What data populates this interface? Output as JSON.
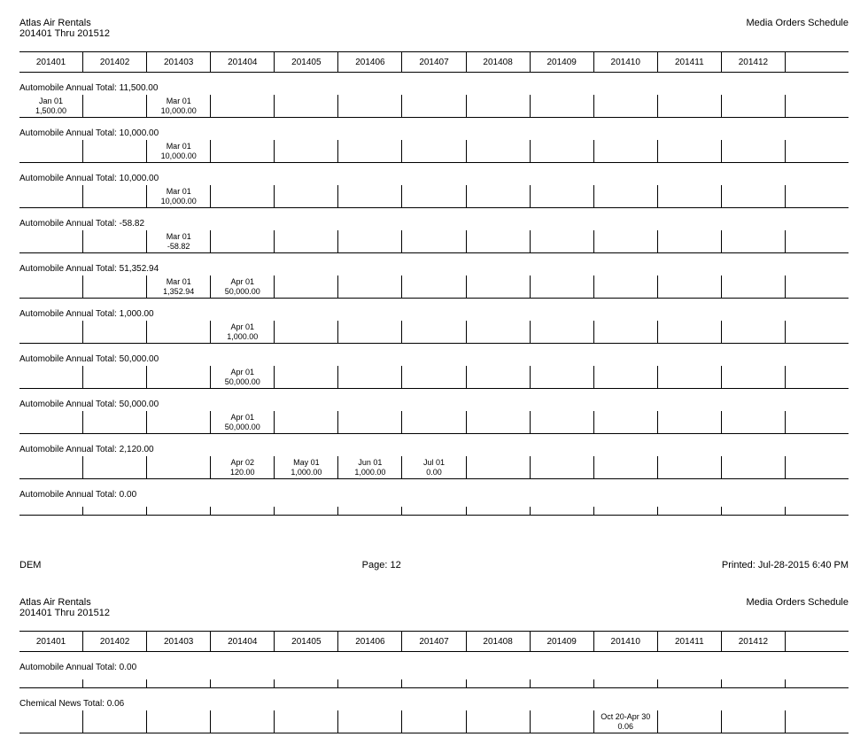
{
  "columns": 13,
  "periods": [
    "201401",
    "201402",
    "201403",
    "201404",
    "201405",
    "201406",
    "201407",
    "201408",
    "201409",
    "201410",
    "201411",
    "201412",
    ""
  ],
  "pages": [
    {
      "company": "Atlas Air Rentals",
      "dateRange": "201401 Thru 201512",
      "docTitle": "Media Orders Schedule",
      "sections": [
        {
          "title": "Automobile Annual   Total: 11,500.00",
          "entries": [
            {
              "col": 0,
              "date": "Jan 01",
              "value": "1,500.00"
            },
            {
              "col": 2,
              "date": "Mar 01",
              "value": "10,000.00"
            }
          ]
        },
        {
          "title": "Automobile Annual   Total: 10,000.00",
          "entries": [
            {
              "col": 2,
              "date": "Mar 01",
              "value": "10,000.00"
            }
          ]
        },
        {
          "title": "Automobile Annual   Total: 10,000.00",
          "entries": [
            {
              "col": 2,
              "date": "Mar 01",
              "value": "10,000.00"
            }
          ]
        },
        {
          "title": "Automobile Annual   Total: -58.82",
          "entries": [
            {
              "col": 2,
              "date": "Mar 01",
              "value": "-58.82"
            }
          ]
        },
        {
          "title": "Automobile Annual   Total: 51,352.94",
          "entries": [
            {
              "col": 2,
              "date": "Mar 01",
              "value": "1,352.94"
            },
            {
              "col": 3,
              "date": "Apr 01",
              "value": "50,000.00"
            }
          ]
        },
        {
          "title": "Automobile Annual   Total: 1,000.00",
          "entries": [
            {
              "col": 3,
              "date": "Apr 01",
              "value": "1,000.00"
            }
          ]
        },
        {
          "title": "Automobile Annual   Total: 50,000.00",
          "entries": [
            {
              "col": 3,
              "date": "Apr 01",
              "value": "50,000.00"
            }
          ]
        },
        {
          "title": "Automobile Annual   Total: 50,000.00",
          "entries": [
            {
              "col": 3,
              "date": "Apr 01",
              "value": "50,000.00"
            }
          ]
        },
        {
          "title": "Automobile Annual   Total: 2,120.00",
          "entries": [
            {
              "col": 3,
              "date": "Apr 02",
              "value": "120.00"
            },
            {
              "col": 4,
              "date": "May 01",
              "value": "1,000.00"
            },
            {
              "col": 5,
              "date": "Jun 01",
              "value": "1,000.00"
            },
            {
              "col": 6,
              "date": "Jul 01",
              "value": "0.00"
            }
          ]
        },
        {
          "title": "Automobile Annual   Total: 0.00",
          "entries": []
        }
      ],
      "footer": {
        "left": "DEM",
        "center": "Page: 12",
        "right": "Printed: Jul-28-2015 6:40 PM"
      }
    },
    {
      "company": "Atlas Air Rentals",
      "dateRange": "201401 Thru 201512",
      "docTitle": "Media Orders Schedule",
      "sections": [
        {
          "title": "Automobile Annual   Total: 0.00",
          "entries": []
        },
        {
          "title": "Chemical News   Total: 0.06",
          "entries": [
            {
              "col": 9,
              "date": "Oct 20-Apr 30",
              "value": "0.06"
            }
          ]
        }
      ],
      "footer": null
    }
  ]
}
